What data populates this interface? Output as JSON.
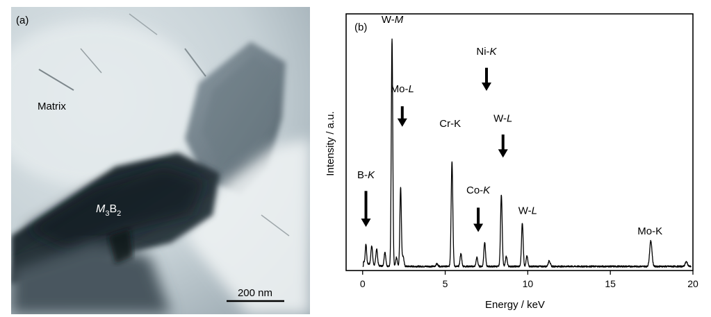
{
  "panel_a": {
    "label": "(a)",
    "matrix_label": "Matrix",
    "phase_label": {
      "base": "M",
      "sub1": "3",
      "mid": "B",
      "sub2": "2"
    },
    "scale_bar": "200 nm"
  },
  "chart_data": {
    "type": "line",
    "panel_label": "(b)",
    "xlabel": "Energy / keV",
    "ylabel": "Intensity / a.u.",
    "xlim": [
      -1,
      20
    ],
    "ylim": [
      0,
      100
    ],
    "xticks": [
      0,
      5,
      10,
      15,
      20
    ],
    "grid": false,
    "baseline": 1.6,
    "peaks": [
      {
        "x": 0.2,
        "h": 7.5,
        "w": 0.04
      },
      {
        "x": 0.55,
        "h": 7.5,
        "w": 0.05
      },
      {
        "x": 0.85,
        "h": 6.5,
        "w": 0.05
      },
      {
        "x": 1.35,
        "h": 5.5,
        "w": 0.05
      },
      {
        "x": 1.78,
        "h": 88.5,
        "w": 0.045
      },
      {
        "x": 2.05,
        "h": 3.5,
        "w": 0.05
      },
      {
        "x": 2.3,
        "h": 31,
        "w": 0.045
      },
      {
        "x": 2.45,
        "h": 4,
        "w": 0.05
      },
      {
        "x": 4.5,
        "h": 1.0,
        "w": 0.06
      },
      {
        "x": 5.41,
        "h": 41,
        "w": 0.05
      },
      {
        "x": 5.95,
        "h": 5,
        "w": 0.05
      },
      {
        "x": 6.92,
        "h": 3.5,
        "w": 0.05
      },
      {
        "x": 7.39,
        "h": 9.5,
        "w": 0.05
      },
      {
        "x": 8.4,
        "h": 28,
        "w": 0.05
      },
      {
        "x": 8.7,
        "h": 4,
        "w": 0.05
      },
      {
        "x": 9.67,
        "h": 17,
        "w": 0.05
      },
      {
        "x": 9.95,
        "h": 4,
        "w": 0.05
      },
      {
        "x": 11.3,
        "h": 2.2,
        "w": 0.06
      },
      {
        "x": 17.45,
        "h": 10,
        "w": 0.07
      },
      {
        "x": 19.6,
        "h": 1.8,
        "w": 0.07
      }
    ],
    "annotations": [
      {
        "text": "W-",
        "italic": "M",
        "x": 1.8,
        "y": 96.5,
        "arrow": false
      },
      {
        "text": "Mo-",
        "italic": "L",
        "x": 2.4,
        "y": 69.5,
        "arrow": true,
        "arrow_top": 64,
        "arrow_bottom": 56
      },
      {
        "text": "Ni-",
        "italic": "K",
        "x": 7.5,
        "y": 84,
        "arrow": true,
        "arrow_top": 79,
        "arrow_bottom": 70
      },
      {
        "text": "Cr-K",
        "italic": "",
        "x": 5.3,
        "y": 56,
        "arrow": false
      },
      {
        "text": "W-",
        "italic": "L",
        "x": 8.5,
        "y": 58,
        "arrow": true,
        "arrow_top": 53,
        "arrow_bottom": 44
      },
      {
        "text": "B-",
        "italic": "K",
        "x": 0.2,
        "y": 36,
        "arrow": true,
        "arrow_top": 31,
        "arrow_bottom": 17
      },
      {
        "text": "Co-",
        "italic": "K",
        "x": 7.0,
        "y": 30,
        "arrow": true,
        "arrow_top": 24.5,
        "arrow_bottom": 15
      },
      {
        "text": "W-",
        "italic": "L",
        "x": 10.0,
        "y": 22,
        "arrow": false
      },
      {
        "text": "Mo-K",
        "italic": "",
        "x": 17.4,
        "y": 14,
        "arrow": false
      }
    ]
  }
}
